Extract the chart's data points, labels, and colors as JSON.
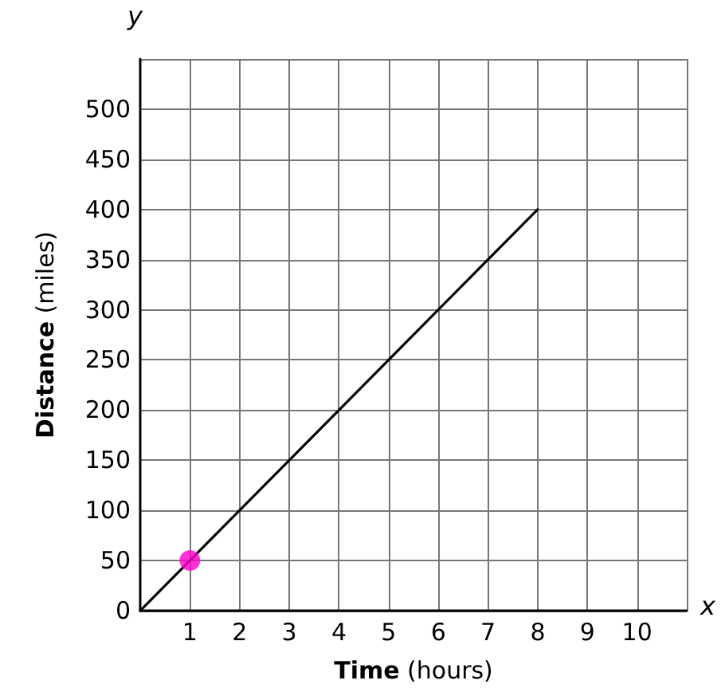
{
  "chart_data": {
    "type": "line",
    "xlabel": "Time (hours)",
    "ylabel": "Distance (miles)",
    "annotations": [
      "x",
      "y"
    ],
    "xlim": [
      0,
      11
    ],
    "xticks": [
      1,
      2,
      3,
      4,
      5,
      6,
      7,
      8,
      9,
      10,
      {
        "value": 11,
        "label": null
      }
    ],
    "ylim": [
      0,
      550
    ],
    "yticks": [
      0,
      50,
      100,
      150,
      200,
      250,
      300,
      350,
      400,
      450,
      500,
      {
        "value": 550,
        "label": null
      }
    ],
    "grid": true,
    "series": [
      {
        "color": "#000000",
        "x": [
          0,
          8
        ],
        "values": [
          0,
          400
        ],
        "marker": "none"
      },
      {
        "type": "scatter",
        "color": "#ff00cc",
        "x": [
          1
        ],
        "values": [
          50
        ],
        "marker": "circle"
      }
    ]
  }
}
